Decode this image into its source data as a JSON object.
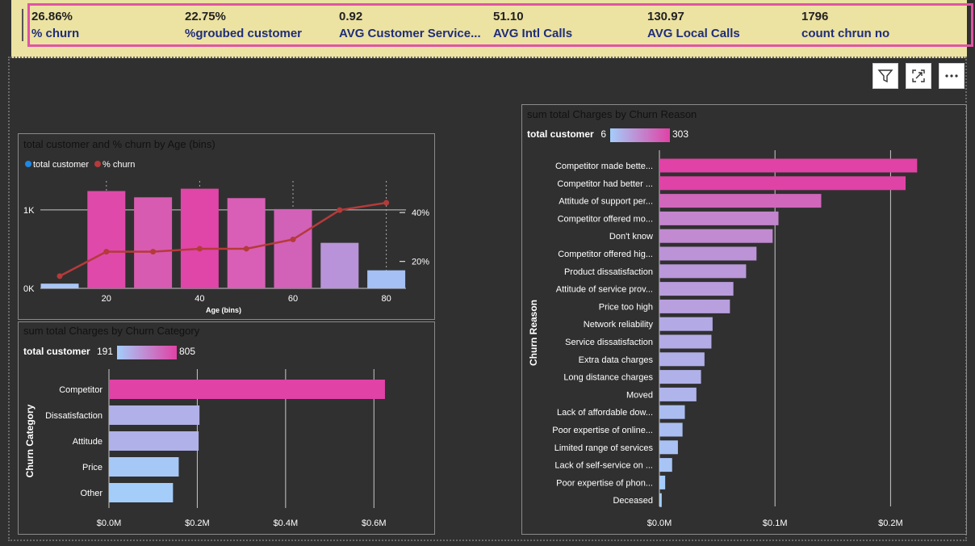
{
  "kpis": [
    {
      "value": "26.86%",
      "label": "% churn"
    },
    {
      "value": "22.75%",
      "label": "%groubed customer"
    },
    {
      "value": "0.92",
      "label": "AVG Customer Service..."
    },
    {
      "value": "51.10",
      "label": "AVG Intl Calls"
    },
    {
      "value": "130.97",
      "label": "AVG Local Calls"
    },
    {
      "value": "1796",
      "label": "count chrun no"
    }
  ],
  "toolbar": {
    "filter_icon": "filter-icon",
    "focus_icon": "focus-mode-icon",
    "more_icon": "more-options-icon"
  },
  "chart_data": [
    {
      "type": "bar",
      "title": "total customer and % churn by Age (bins)",
      "legend": [
        "total customer",
        "% churn"
      ],
      "legend_colors": [
        "#1e88e5",
        "#b53a3a"
      ],
      "xlabel": "Age (bins)",
      "x_ticks": [
        "20",
        "40",
        "60",
        "80"
      ],
      "y_ticks": [
        "0K",
        "1K"
      ],
      "y2_ticks": [
        "20%",
        "40%"
      ],
      "x": [
        10,
        20,
        30,
        40,
        50,
        60,
        70,
        80
      ],
      "series": [
        {
          "name": "total customer",
          "values": [
            60,
            1240,
            1160,
            1270,
            1150,
            1010,
            580,
            230
          ],
          "colors": [
            "#a9c6f7",
            "#df4aaa",
            "#d85bb2",
            "#e045a8",
            "#d95fb6",
            "#d261b8",
            "#b993d9",
            "#a4c0f4"
          ]
        },
        {
          "name": "% churn",
          "values": [
            14,
            24,
            24,
            25.2,
            25.2,
            29,
            41,
            44
          ],
          "color": "#b53a3a"
        }
      ],
      "ylim": [
        0,
        1400
      ],
      "y2lim": [
        9,
        46
      ]
    },
    {
      "type": "bar",
      "orientation": "horizontal",
      "title": "sum total Charges by Churn Category",
      "ylabel": "Churn Category",
      "color_legend": {
        "label": "total customer",
        "min": "191",
        "max": "805"
      },
      "categories": [
        "Competitor",
        "Dissatisfaction",
        "Attitude",
        "Price",
        "Other"
      ],
      "values": [
        0.625,
        0.205,
        0.203,
        0.158,
        0.145
      ],
      "color_values": [
        805,
        320,
        314,
        211,
        191
      ],
      "x_ticks": [
        "$0.0M",
        "$0.2M",
        "$0.4M",
        "$0.6M"
      ],
      "xlim": [
        0,
        0.7
      ]
    },
    {
      "type": "bar",
      "orientation": "horizontal",
      "title": "sum total Charges by Churn Reason",
      "ylabel": "Churn Reason",
      "color_legend": {
        "label": "total customer",
        "min": "6",
        "max": "303"
      },
      "categories": [
        "Competitor made bette...",
        "Competitor had better ...",
        "Attitude of support per...",
        "Competitor offered mo...",
        "Don't know",
        "Competitor offered hig...",
        "Product dissatisfaction",
        "Attitude of service prov...",
        "Price too high",
        "Network reliability",
        "Service dissatisfaction",
        "Extra data charges",
        "Long distance charges",
        "Moved",
        "Lack of affordable dow...",
        "Poor expertise of online...",
        "Limited range of services",
        "Lack of self-service on ...",
        "Poor expertise of phon...",
        "Deceased"
      ],
      "values": [
        0.223,
        0.213,
        0.14,
        0.103,
        0.098,
        0.084,
        0.075,
        0.064,
        0.061,
        0.046,
        0.045,
        0.039,
        0.036,
        0.032,
        0.022,
        0.02,
        0.016,
        0.011,
        0.005,
        0.002
      ],
      "color_values": [
        303,
        300,
        225,
        160,
        150,
        130,
        120,
        110,
        105,
        80,
        78,
        70,
        65,
        60,
        40,
        38,
        30,
        25,
        10,
        6
      ],
      "x_ticks": [
        "$0.0M",
        "$0.1M",
        "$0.2M"
      ],
      "xlim": [
        0,
        0.25
      ]
    }
  ]
}
